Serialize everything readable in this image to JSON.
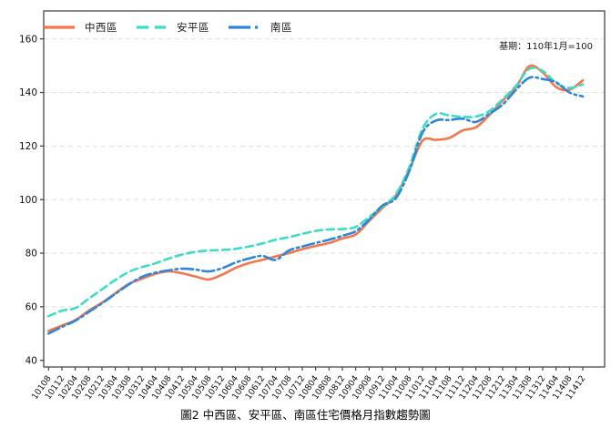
{
  "chart_data": {
    "type": "line",
    "title": "圖2 中西區、安平區、南區住宅價格月指數趨勢圖",
    "note": "基期：110年1月=100",
    "xlabel": "",
    "ylabel": "",
    "ylim": [
      40,
      160
    ],
    "yticks": [
      40,
      60,
      80,
      100,
      120,
      140,
      160
    ],
    "grid": "horizontal-dashed",
    "legend_position": "top-left-inside",
    "x_labels": [
      "10108",
      "10112",
      "10204",
      "10208",
      "10212",
      "10304",
      "10308",
      "10312",
      "10404",
      "10408",
      "10412",
      "10504",
      "10508",
      "10512",
      "10604",
      "10608",
      "10612",
      "10704",
      "10708",
      "10712",
      "10804",
      "10808",
      "10812",
      "10904",
      "10908",
      "10912",
      "11004",
      "11008",
      "11012",
      "11104",
      "11108",
      "11112",
      "11204",
      "11208",
      "11212",
      "11304",
      "11308",
      "11312",
      "11404",
      "11408",
      "11412"
    ],
    "series": [
      {
        "name": "中西區",
        "color": "#F4764D",
        "style": "solid",
        "values": [
          51,
          53,
          55,
          58.5,
          61.5,
          65,
          68.5,
          70.5,
          72.3,
          73.2,
          72.5,
          71.3,
          70.2,
          72,
          74.5,
          76.3,
          77.5,
          78.8,
          80,
          81.5,
          82.7,
          83.8,
          85.5,
          87,
          92,
          96.9,
          101.5,
          111,
          122,
          122.3,
          123,
          125.8,
          127,
          131.5,
          137,
          142,
          149.8,
          147.5,
          142,
          141,
          144.5
        ]
      },
      {
        "name": "安平區",
        "color": "#3CDCC5",
        "style": "dashed",
        "values": [
          56.5,
          58.5,
          59.5,
          63,
          66.5,
          70,
          73,
          74.8,
          76.2,
          78,
          79.5,
          80.5,
          81,
          81.2,
          81.6,
          82.5,
          83.6,
          85,
          86,
          87.2,
          88.3,
          88.9,
          89,
          89.8,
          93.5,
          97.4,
          102,
          112,
          126.5,
          132,
          131.4,
          130.9,
          131,
          133,
          137.5,
          142.5,
          148.8,
          148,
          143.5,
          141.7,
          143
        ]
      },
      {
        "name": "南區",
        "color": "#2E86D9",
        "style": "dash-dot",
        "values": [
          50,
          52.5,
          54.8,
          58,
          61.3,
          64.8,
          68.3,
          71.2,
          72.7,
          73.6,
          74.2,
          73.9,
          73.2,
          74.4,
          76.5,
          78,
          79,
          77.5,
          81,
          82.5,
          83.8,
          85,
          86.5,
          88.2,
          92.5,
          97.8,
          100.5,
          110.5,
          125,
          129.5,
          129.7,
          130.2,
          129,
          132,
          135.5,
          141,
          145.5,
          145,
          143.8,
          140,
          138.5
        ]
      }
    ]
  }
}
